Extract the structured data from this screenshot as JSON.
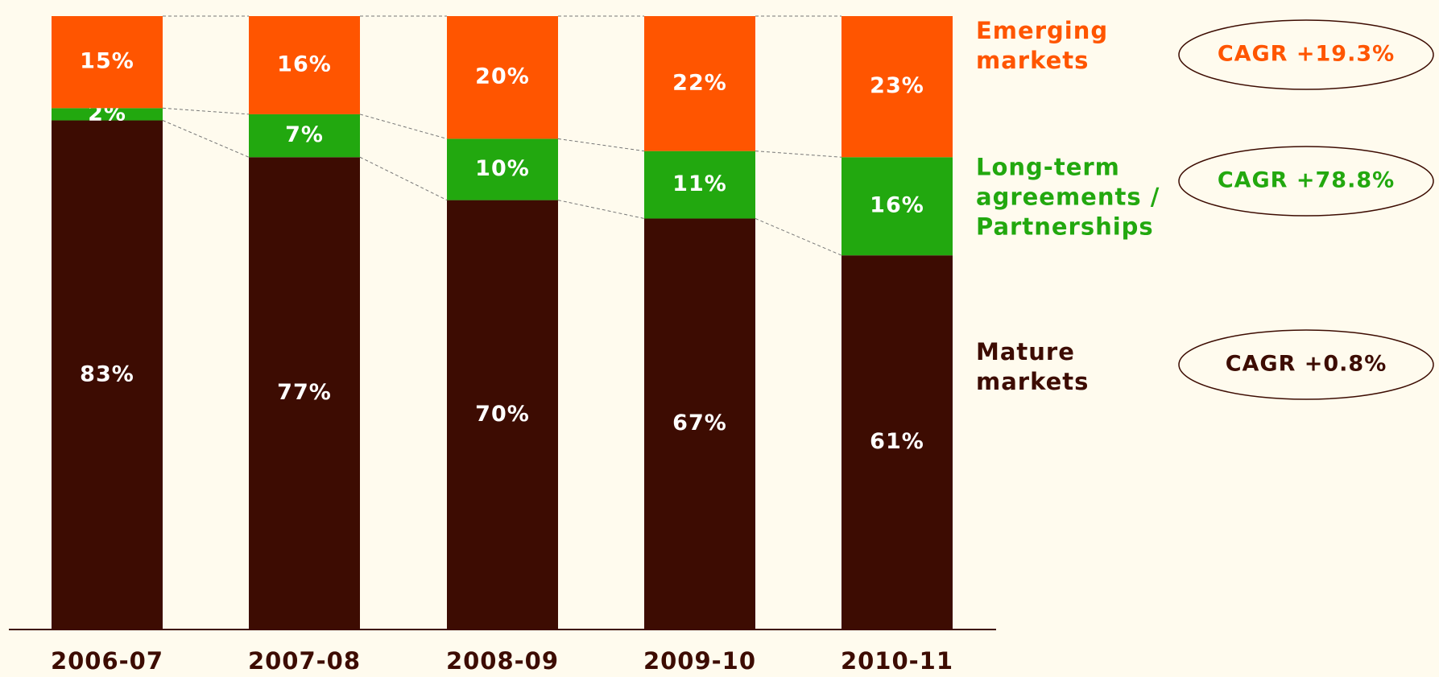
{
  "chart_data": {
    "type": "stacked-bar",
    "categories": [
      "2006-07",
      "2007-08",
      "2008-09",
      "2009-10",
      "2010-11"
    ],
    "series": [
      {
        "name": "Mature markets",
        "color": "#3d0c02",
        "cagr": "CAGR +0.8%",
        "values": [
          83,
          77,
          70,
          67,
          61
        ],
        "value_labels": [
          "83%",
          "77%",
          "70%",
          "67%",
          "61%"
        ]
      },
      {
        "name": "Long-term agreements / Partnerships",
        "color": "#22a80f",
        "cagr": "CAGR +78.8%",
        "values": [
          2,
          7,
          10,
          11,
          16
        ],
        "value_labels": [
          "2%",
          "7%",
          "10%",
          "11%",
          "16%"
        ]
      },
      {
        "name": "Emerging markets",
        "color": "#ff5500",
        "cagr": "CAGR +19.3%",
        "values": [
          15,
          16,
          20,
          22,
          23
        ],
        "value_labels": [
          "15%",
          "16%",
          "20%",
          "22%",
          "23%"
        ]
      }
    ],
    "ylim": [
      0,
      100
    ]
  }
}
